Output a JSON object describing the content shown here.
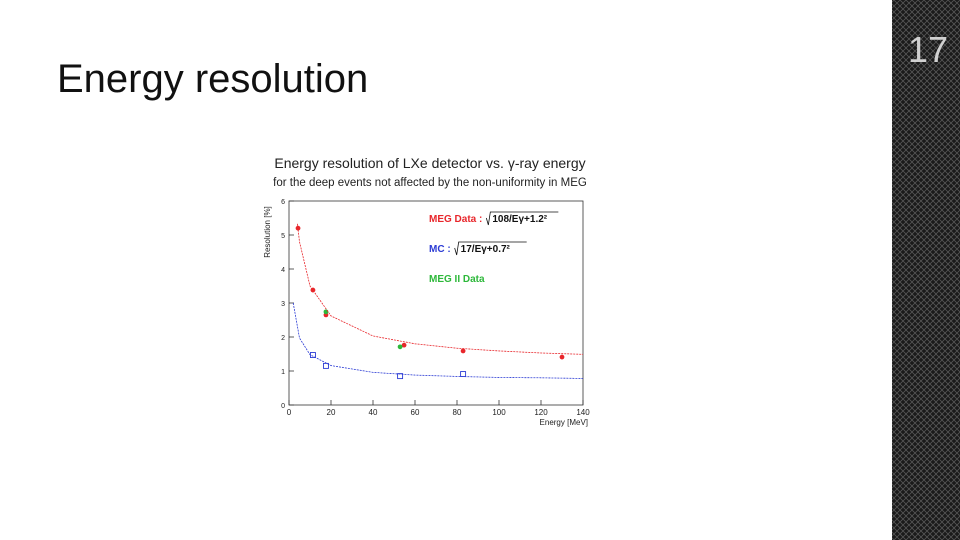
{
  "slide": {
    "title": "Energy resolution",
    "page_number": "17"
  },
  "chart_data": {
    "type": "scatter",
    "title": "Energy resolution of LXe detector vs. γ-ray energy",
    "subtitle": "for the deep events not affected by the non-uniformity in MEG",
    "x_label": "Energy [MeV]",
    "y_label": "Resolution [%]",
    "xlim": [
      0,
      140
    ],
    "ylim": [
      0,
      6
    ],
    "xticks": [
      0,
      20,
      40,
      60,
      80,
      100,
      120,
      140
    ],
    "yticks": [
      0,
      1,
      2,
      3,
      4,
      5,
      6
    ],
    "series": [
      {
        "name": "MEG Data :",
        "fit_label": "108/Eγ+1.2²",
        "color": "#e8262b",
        "marker": "circle",
        "x": [
          4.3,
          11.4,
          17.6,
          54.8,
          82.9,
          130
        ],
        "values": [
          5.2,
          3.38,
          2.65,
          1.76,
          1.59,
          1.41
        ]
      },
      {
        "name": "MC :",
        "fit_label": "17/Eγ+0.7²",
        "color": "#2b3bd4",
        "marker": "square",
        "x": [
          11.4,
          17.6,
          52.9,
          82.9
        ],
        "values": [
          1.47,
          1.15,
          0.85,
          0.91
        ]
      },
      {
        "name": "MEG II Data",
        "color": "#2db83a",
        "marker": "circle",
        "x": [
          17.6,
          52.9
        ],
        "values": [
          2.74,
          1.71
        ]
      },
      {
        "color": "#e8262b",
        "marker": "line",
        "x": [
          4,
          5,
          10,
          20,
          40,
          60,
          80,
          100,
          120,
          140
        ],
        "values": [
          5.33,
          4.8,
          3.5,
          2.62,
          2.03,
          1.8,
          1.67,
          1.59,
          1.53,
          1.49
        ]
      },
      {
        "color": "#2b3bd4",
        "marker": "line",
        "x": [
          2,
          5,
          10,
          20,
          40,
          60,
          80,
          100,
          120,
          140
        ],
        "values": [
          3.0,
          1.97,
          1.48,
          1.16,
          0.96,
          0.88,
          0.84,
          0.81,
          0.8,
          0.78
        ]
      }
    ]
  }
}
